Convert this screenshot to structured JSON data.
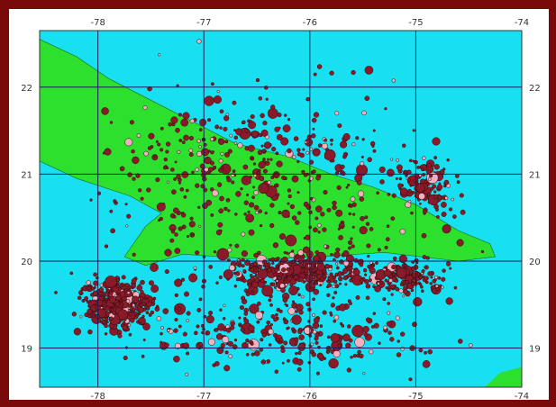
{
  "map": {
    "colors": {
      "frame": "#7a0a0a",
      "water": "#19e0f0",
      "land": "#2ee02e",
      "grid": "#1a1a5a",
      "event_fill": "#8a1a2a",
      "event_stroke": "#2a0a0a",
      "event_highlight": "#f0b0c0"
    },
    "lon_ticks": [
      {
        "value": -78,
        "label": "-78"
      },
      {
        "value": -77,
        "label": "-77"
      },
      {
        "value": -76,
        "label": "-76"
      },
      {
        "value": -75,
        "label": "-75"
      },
      {
        "value": -74,
        "label": "-74"
      }
    ],
    "lat_ticks": [
      {
        "value": 22,
        "label": "22"
      },
      {
        "value": 21,
        "label": "21"
      },
      {
        "value": 20,
        "label": "20"
      },
      {
        "value": 19,
        "label": "19"
      }
    ],
    "lon_range": [
      -78.55,
      -74.0
    ],
    "lat_range": [
      18.55,
      22.65
    ],
    "land_polygon": [
      [
        -78.55,
        22.55
      ],
      [
        -78.2,
        22.35
      ],
      [
        -77.9,
        22.1
      ],
      [
        -77.5,
        21.85
      ],
      [
        -77.1,
        21.6
      ],
      [
        -76.7,
        21.35
      ],
      [
        -76.2,
        21.2
      ],
      [
        -75.8,
        21.0
      ],
      [
        -75.4,
        20.85
      ],
      [
        -75.0,
        20.65
      ],
      [
        -74.6,
        20.35
      ],
      [
        -74.3,
        20.2
      ],
      [
        -74.25,
        20.05
      ],
      [
        -74.6,
        20.0
      ],
      [
        -75.3,
        20.1
      ],
      [
        -75.9,
        20.05
      ],
      [
        -76.5,
        20.02
      ],
      [
        -77.2,
        20.08
      ],
      [
        -77.55,
        19.95
      ],
      [
        -77.75,
        20.05
      ],
      [
        -77.55,
        20.4
      ],
      [
        -77.4,
        20.55
      ],
      [
        -77.7,
        20.75
      ],
      [
        -78.2,
        20.95
      ],
      [
        -78.55,
        21.15
      ]
    ],
    "clusters": [
      {
        "lon": -77.8,
        "lat": 19.5,
        "spread_lon": 0.28,
        "spread_lat": 0.25,
        "count": 380
      },
      {
        "lon": -76.1,
        "lat": 19.88,
        "spread_lon": 0.55,
        "spread_lat": 0.16,
        "count": 360
      },
      {
        "lon": -75.1,
        "lat": 19.8,
        "spread_lon": 0.35,
        "spread_lat": 0.17,
        "count": 160
      },
      {
        "lon": -74.9,
        "lat": 20.85,
        "spread_lon": 0.22,
        "spread_lat": 0.28,
        "count": 110
      },
      {
        "lon": -76.6,
        "lat": 21.2,
        "spread_lon": 1.1,
        "spread_lat": 0.55,
        "count": 180
      },
      {
        "lon": -76.3,
        "lat": 19.2,
        "spread_lon": 1.2,
        "spread_lat": 0.4,
        "count": 260
      },
      {
        "lon": -76.3,
        "lat": 20.6,
        "spread_lon": 1.6,
        "spread_lat": 1.4,
        "count": 420
      }
    ]
  }
}
